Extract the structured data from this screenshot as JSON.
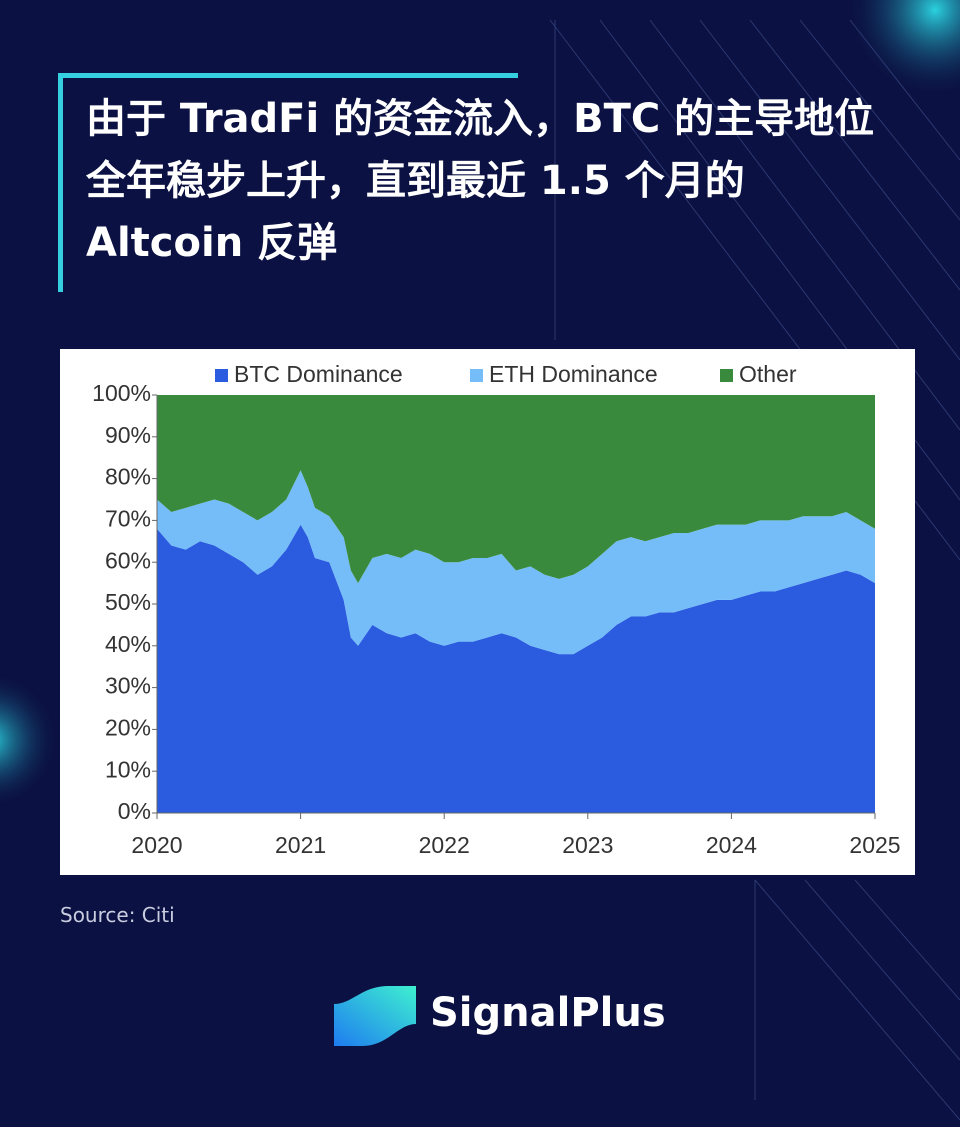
{
  "title": "由于 TradFi 的资金流入，BTC 的主导地位全年稳步上升，直到最近 1.5 个月的 Altcoin 反弹",
  "source": "Source: Citi",
  "brand": "SignalPlus",
  "chart_data": {
    "type": "stacked_area",
    "x": [
      2020,
      2020.1,
      2020.2,
      2020.3,
      2020.4,
      2020.5,
      2020.6,
      2020.7,
      2020.8,
      2020.9,
      2021,
      2021.05,
      2021.1,
      2021.2,
      2021.3,
      2021.35,
      2021.4,
      2021.5,
      2021.6,
      2021.7,
      2021.8,
      2021.9,
      2022,
      2022.1,
      2022.2,
      2022.3,
      2022.4,
      2022.5,
      2022.6,
      2022.7,
      2022.8,
      2022.9,
      2023,
      2023.1,
      2023.2,
      2023.3,
      2023.4,
      2023.5,
      2023.6,
      2023.7,
      2023.8,
      2023.9,
      2024,
      2024.1,
      2024.2,
      2024.3,
      2024.4,
      2024.5,
      2024.6,
      2024.7,
      2024.8,
      2024.9,
      2025
    ],
    "series": [
      {
        "name": "BTC Dominance",
        "color": "#2b5ce0",
        "values": [
          68,
          64,
          63,
          65,
          64,
          62,
          60,
          57,
          59,
          63,
          69,
          66,
          61,
          60,
          51,
          42,
          40,
          45,
          43,
          42,
          43,
          41,
          40,
          41,
          41,
          42,
          43,
          42,
          40,
          39,
          38,
          38,
          40,
          42,
          45,
          47,
          47,
          48,
          48,
          49,
          50,
          51,
          51,
          52,
          53,
          53,
          54,
          55,
          56,
          57,
          58,
          57,
          55
        ]
      },
      {
        "name": "ETH Dominance",
        "color": "#74bdf8",
        "values": [
          7,
          8,
          10,
          9,
          11,
          12,
          12,
          13,
          13,
          12,
          13,
          12,
          12,
          11,
          15,
          16,
          15,
          16,
          19,
          19,
          20,
          21,
          20,
          19,
          20,
          19,
          19,
          16,
          19,
          18,
          18,
          19,
          19,
          20,
          20,
          19,
          18,
          18,
          19,
          18,
          18,
          18,
          18,
          17,
          17,
          17,
          16,
          16,
          15,
          14,
          14,
          13,
          13
        ]
      },
      {
        "name": "Other",
        "color": "#3a8a3e",
        "values": [
          25,
          28,
          27,
          26,
          25,
          26,
          28,
          30,
          28,
          25,
          18,
          22,
          27,
          29,
          34,
          42,
          45,
          39,
          38,
          39,
          37,
          38,
          40,
          40,
          39,
          39,
          38,
          42,
          41,
          43,
          44,
          43,
          41,
          38,
          35,
          34,
          35,
          34,
          33,
          33,
          32,
          31,
          31,
          31,
          30,
          30,
          30,
          29,
          29,
          29,
          28,
          30,
          32
        ]
      }
    ],
    "xlim": [
      2020,
      2025
    ],
    "xticks": [
      2020,
      2021,
      2022,
      2023,
      2024,
      2025
    ],
    "ylim": [
      0,
      100
    ],
    "yticks": [
      {
        "value": 0,
        "label": "0%"
      },
      {
        "value": 10,
        "label": "10%"
      },
      {
        "value": 20,
        "label": "20%"
      },
      {
        "value": 30,
        "label": "30%"
      },
      {
        "value": 40,
        "label": "40%"
      },
      {
        "value": 50,
        "label": "50%"
      },
      {
        "value": 60,
        "label": "60%"
      },
      {
        "value": 70,
        "label": "70%"
      },
      {
        "value": 80,
        "label": "80%"
      },
      {
        "value": 90,
        "label": "90%"
      },
      {
        "value": 100,
        "label": "100%"
      }
    ],
    "legend": "top"
  }
}
